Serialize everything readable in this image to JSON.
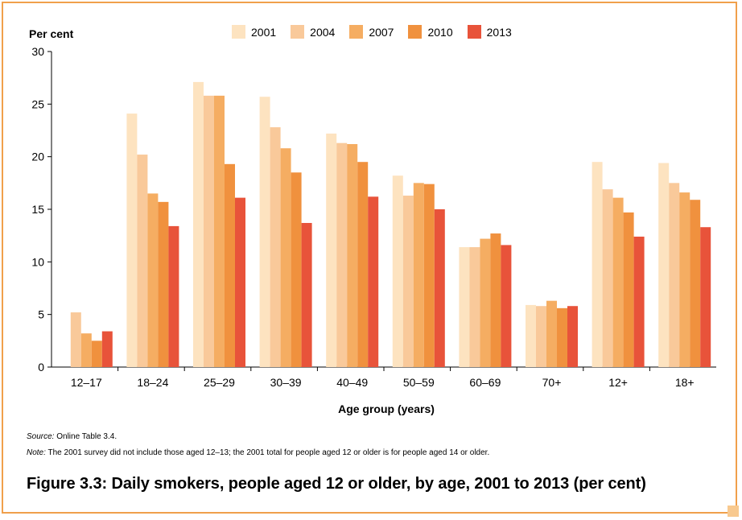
{
  "chart_data": {
    "type": "bar",
    "title": "Figure 3.3: Daily smokers, people aged 12 or older, by age, 2001 to 2013 (per cent)",
    "ylabel": "Per cent",
    "xlabel": "Age group (years)",
    "ylim": [
      0,
      30
    ],
    "yticks": [
      "0",
      "5",
      "10",
      "15",
      "20",
      "25",
      "30"
    ],
    "legend_position": "top",
    "grid": false,
    "categories": [
      "12–17",
      "18–24",
      "25–29",
      "30–39",
      "40–49",
      "50–59",
      "60–69",
      "70+",
      "12+",
      "18+"
    ],
    "series": [
      {
        "name": "2001",
        "color": "#fde3c0",
        "values": [
          null,
          24.1,
          27.1,
          25.7,
          22.2,
          18.2,
          11.4,
          5.9,
          19.5,
          19.4
        ]
      },
      {
        "name": "2004",
        "color": "#f9c99a",
        "values": [
          5.2,
          20.2,
          25.8,
          22.8,
          21.3,
          16.3,
          11.4,
          5.8,
          16.9,
          17.5
        ]
      },
      {
        "name": "2007",
        "color": "#f5ad62",
        "values": [
          3.2,
          16.5,
          25.8,
          20.8,
          21.2,
          17.5,
          12.2,
          6.3,
          16.1,
          16.6
        ]
      },
      {
        "name": "2010",
        "color": "#f0913e",
        "values": [
          2.5,
          15.7,
          19.3,
          18.5,
          19.5,
          17.4,
          12.7,
          5.6,
          14.7,
          15.9
        ]
      },
      {
        "name": "2013",
        "color": "#e8533a",
        "values": [
          3.4,
          13.4,
          16.1,
          13.7,
          16.2,
          15.0,
          11.6,
          5.8,
          12.4,
          13.3
        ]
      }
    ]
  },
  "footer": {
    "source_label": "Source:",
    "source_text": " Online Table 3.4.",
    "note_label": "Note:",
    "note_text": " The 2001 survey did not include those aged 12–13; the 2001 total for people aged 12 or older is for people aged 14 or older."
  },
  "colors": {
    "frame": "#f0a04b",
    "frame_tab": "#f8c98f"
  }
}
